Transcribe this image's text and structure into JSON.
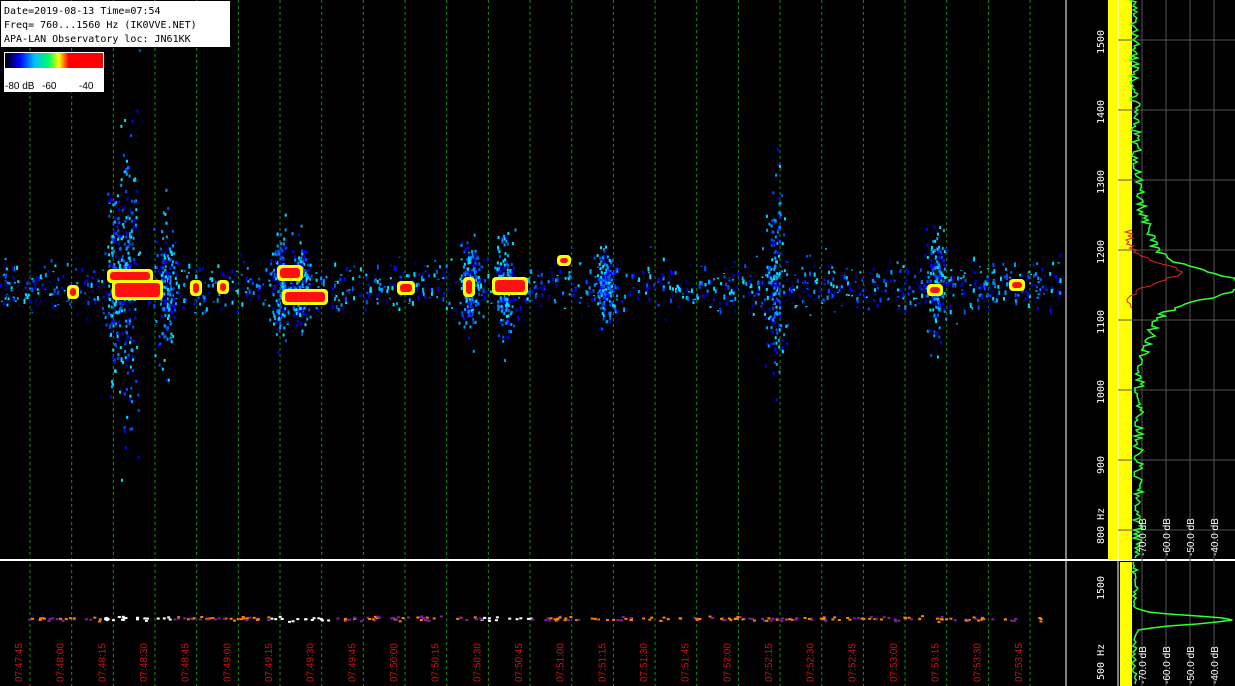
{
  "header": {
    "lines": [
      "Date=2019-08-13 Time=07:54",
      "Freq= 760...1560 Hz (IK0VVE.NET)",
      "APA-LAN Observatory loc: JN61KK"
    ]
  },
  "colorbar": {
    "labels": [
      "-80 dB",
      "-60",
      "-40"
    ]
  },
  "time_axis": {
    "labels": [
      "07:47:45",
      "07:48:00",
      "07:48:15",
      "07:48:30",
      "07:48:45",
      "07:49:00",
      "07:49:15",
      "07:49:30",
      "07:49:45",
      "07:50:00",
      "07:50:15",
      "07:50:30",
      "07:50:45",
      "07:51:00",
      "07:51:15",
      "07:51:30",
      "07:51:45",
      "07:52:00",
      "07:52:15",
      "07:52:30",
      "07:52:45",
      "07:53:00",
      "07:53:15",
      "07:53:30",
      "07:53:45"
    ]
  },
  "frequency_axis": {
    "labels": [
      "1500",
      "1400",
      "1300",
      "1200",
      "1100",
      "1000",
      "900",
      "800 Hz"
    ]
  },
  "level_axis": {
    "labels": [
      "-70.0 dB",
      "-60.0 dB",
      "-50.0 dB",
      "-40.0 dB"
    ]
  },
  "bottom_panel": {
    "frequency_labels": [
      "1500",
      "500 Hz"
    ],
    "level_labels": [
      "-70.0 dB",
      "-60.0 dB",
      "-50.0 dB",
      "-40.0 dB"
    ]
  }
}
